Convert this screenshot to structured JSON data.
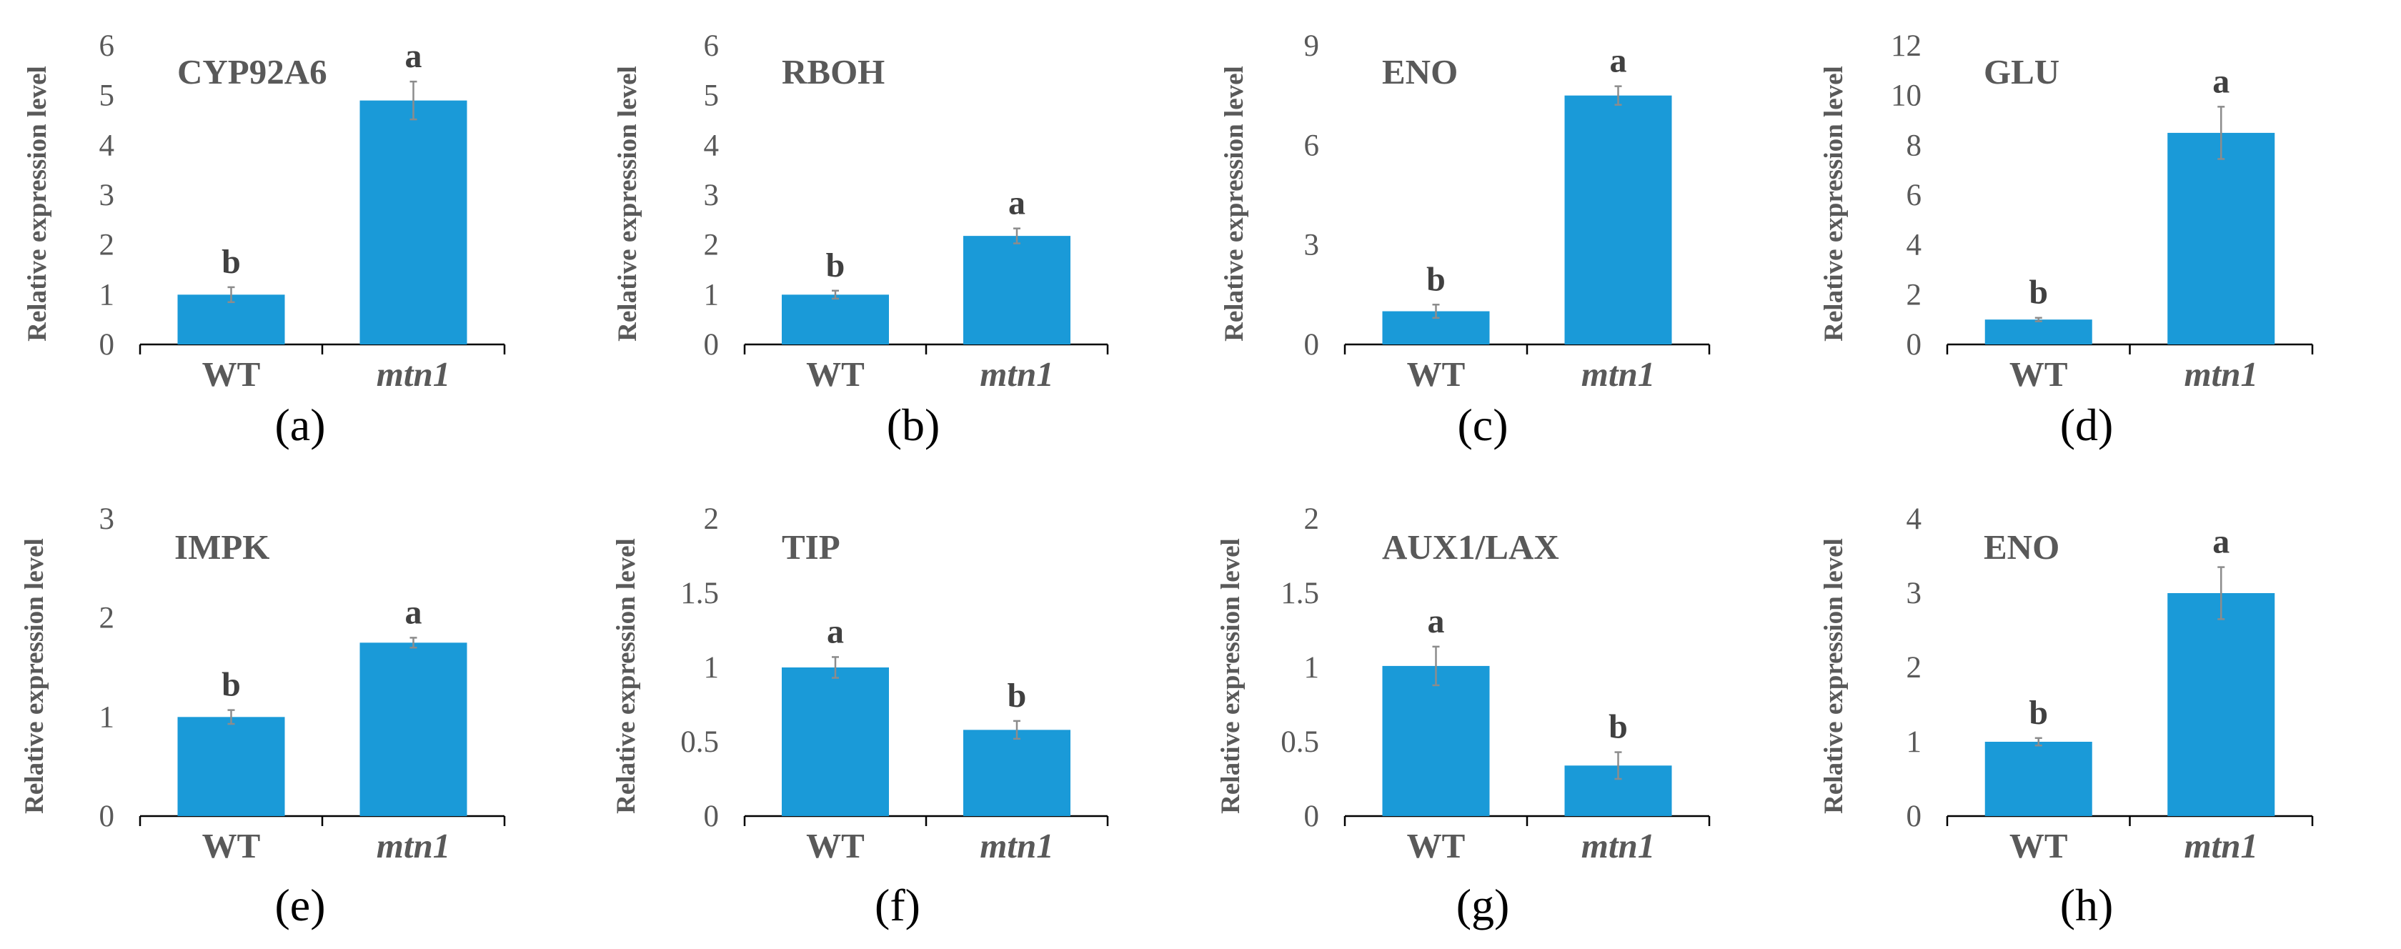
{
  "colors": {
    "bar": "#1a9ad8",
    "text": "#595959",
    "axis": "#000000",
    "error": "#8c8c8c"
  },
  "chart_data": [
    {
      "type": "bar",
      "panel": "(a)",
      "title": "CYP92A6",
      "ylabel": "Relative expression level",
      "categories": [
        "WT",
        "mtn1"
      ],
      "italic": [
        false,
        true
      ],
      "values": [
        1.0,
        4.9
      ],
      "errors": [
        0.15,
        0.38
      ],
      "significance": [
        "b",
        "a"
      ],
      "ylim": [
        0,
        6
      ],
      "yticks": [
        "0",
        "1",
        "2",
        "3",
        "4",
        "5",
        "6"
      ]
    },
    {
      "type": "bar",
      "panel": "(b)",
      "title": "RBOH",
      "ylabel": "Relative expression level",
      "categories": [
        "WT",
        "mtn1"
      ],
      "italic": [
        false,
        true
      ],
      "values": [
        1.0,
        2.18
      ],
      "errors": [
        0.08,
        0.15
      ],
      "significance": [
        "b",
        "a"
      ],
      "ylim": [
        0,
        6
      ],
      "yticks": [
        "0",
        "1",
        "2",
        "3",
        "4",
        "5",
        "6"
      ]
    },
    {
      "type": "bar",
      "panel": "(c)",
      "title": "ENO",
      "ylabel": "Relative expression level",
      "categories": [
        "WT",
        "mtn1"
      ],
      "italic": [
        false,
        true
      ],
      "values": [
        1.0,
        7.5
      ],
      "errors": [
        0.2,
        0.28
      ],
      "significance": [
        "b",
        "a"
      ],
      "ylim": [
        0,
        9
      ],
      "yticks": [
        "0",
        "3",
        "6",
        "9"
      ]
    },
    {
      "type": "bar",
      "panel": "(d)",
      "title": "GLU",
      "ylabel": "Relative expression level",
      "categories": [
        "WT",
        "mtn1"
      ],
      "italic": [
        false,
        true
      ],
      "values": [
        1.0,
        8.5
      ],
      "errors": [
        0.07,
        1.05
      ],
      "significance": [
        "b",
        "a"
      ],
      "ylim": [
        0,
        12
      ],
      "yticks": [
        "0",
        "2",
        "4",
        "6",
        "8",
        "10",
        "12"
      ]
    },
    {
      "type": "bar",
      "panel": "(e)",
      "title": "IMPK",
      "ylabel": "Relative expression level",
      "categories": [
        "WT",
        "mtn1"
      ],
      "italic": [
        false,
        true
      ],
      "values": [
        1.0,
        1.75
      ],
      "errors": [
        0.07,
        0.05
      ],
      "significance": [
        "b",
        "a"
      ],
      "ylim": [
        0,
        3
      ],
      "yticks": [
        "0",
        "1",
        "2",
        "3"
      ]
    },
    {
      "type": "bar",
      "panel": "(f)",
      "title": "TIP",
      "ylabel": "Relative expression level",
      "categories": [
        "WT",
        "mtn1"
      ],
      "italic": [
        false,
        true
      ],
      "values": [
        1.0,
        0.58
      ],
      "errors": [
        0.07,
        0.06
      ],
      "significance": [
        "a",
        "b"
      ],
      "ylim": [
        0,
        2
      ],
      "yticks": [
        "0",
        "0.5",
        "1",
        "1.5",
        "2"
      ]
    },
    {
      "type": "bar",
      "panel": "(g)",
      "title": "AUX1/LAX",
      "ylabel": "Relative expression level",
      "categories": [
        "WT",
        "mtn1"
      ],
      "italic": [
        false,
        true
      ],
      "values": [
        1.01,
        0.34
      ],
      "errors": [
        0.13,
        0.09
      ],
      "significance": [
        "a",
        "b"
      ],
      "ylim": [
        0,
        2
      ],
      "yticks": [
        "0",
        "0.5",
        "1",
        "1.5",
        "2"
      ]
    },
    {
      "type": "bar",
      "panel": "(h)",
      "title": "ENO",
      "ylabel": "Relative expression level",
      "categories": [
        "WT",
        "mtn1"
      ],
      "italic": [
        false,
        true
      ],
      "values": [
        1.0,
        3.0
      ],
      "errors": [
        0.05,
        0.35
      ],
      "significance": [
        "b",
        "a"
      ],
      "ylim": [
        0,
        4
      ],
      "yticks": [
        "0",
        "1",
        "2",
        "3",
        "4"
      ]
    }
  ]
}
